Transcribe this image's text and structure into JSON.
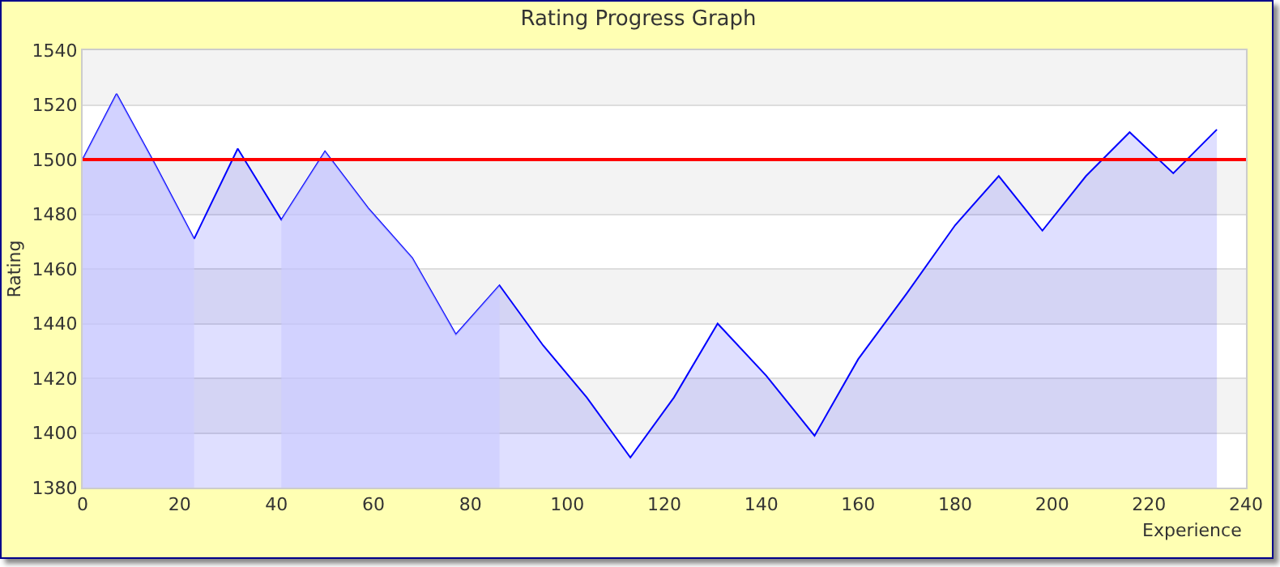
{
  "chart_data": {
    "type": "area",
    "title": "Rating Progress Graph",
    "xlabel": "Experience",
    "ylabel": "Rating",
    "x": [
      0,
      7,
      15,
      23,
      32,
      41,
      50,
      59,
      68,
      77,
      86,
      95,
      104,
      113,
      122,
      131,
      141,
      151,
      160,
      170,
      180,
      189,
      198,
      207,
      216,
      225,
      234
    ],
    "series": [
      {
        "color": "#0000ff",
        "values": [
          1500,
          1524,
          1498,
          1471,
          1504,
          1478,
          1503,
          1482,
          1464,
          1436,
          1454,
          1432,
          1413,
          1391,
          1413,
          1440,
          1421,
          1399,
          1427,
          1451,
          1476,
          1494,
          1474,
          1494,
          1510,
          1495,
          1511
        ]
      },
      {
        "type": "area",
        "color": "#ccccff",
        "x": [
          0,
          7,
          15,
          23
        ],
        "values": [
          1500,
          1524,
          1498,
          1471
        ]
      },
      {
        "type": "area",
        "color": "#ccccff",
        "x": [
          41,
          50,
          59,
          68,
          77,
          86
        ],
        "values": [
          1478,
          1503,
          1482,
          1464,
          1436,
          1454
        ]
      }
    ],
    "xlim": [
      0,
      240
    ],
    "xticks": [
      0,
      20,
      40,
      60,
      80,
      100,
      120,
      140,
      160,
      180,
      200,
      220,
      240
    ],
    "ylim": [
      1380,
      1540
    ],
    "yticks": [
      1380,
      1400,
      1420,
      1440,
      1460,
      1480,
      1500,
      1520,
      1540
    ],
    "ref_lines": [
      {
        "axis": "y",
        "value": 1500,
        "color": "#ff0000"
      }
    ],
    "grid": "y",
    "legend": false
  }
}
